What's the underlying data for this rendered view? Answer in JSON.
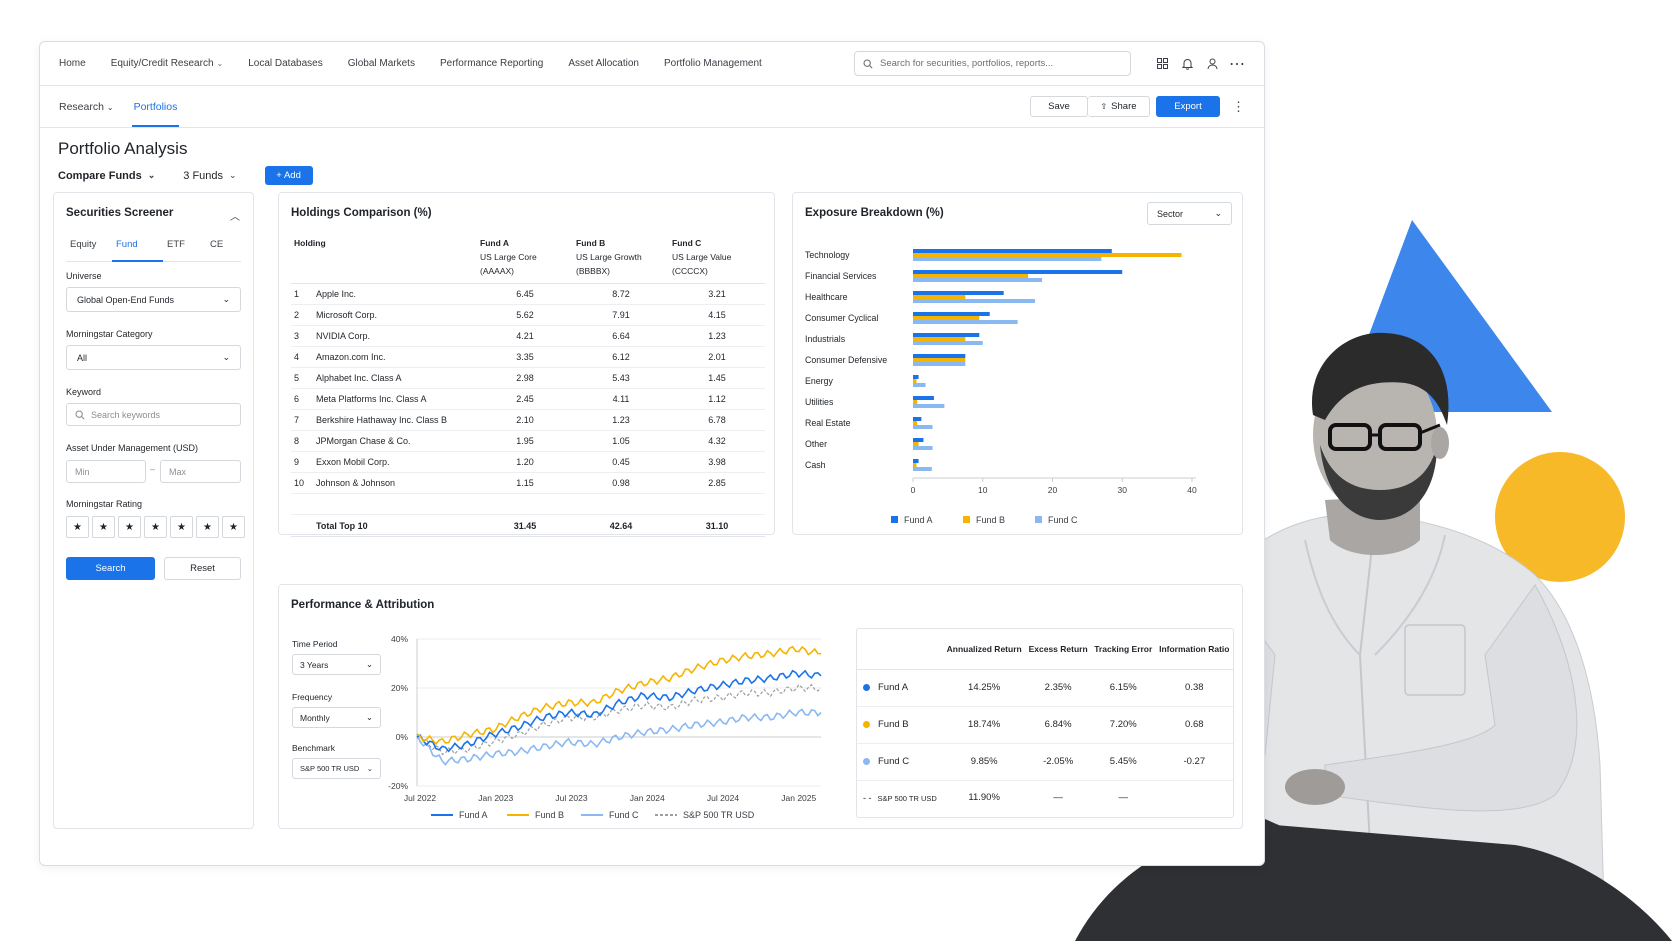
{
  "nav": {
    "items": [
      {
        "label": "Home"
      },
      {
        "label": "Equity/Credit Research",
        "has_dropdown": true
      },
      {
        "label": "Local Databases"
      },
      {
        "label": "Global Markets"
      },
      {
        "label": "Performance Reporting"
      },
      {
        "label": "Asset Allocation"
      },
      {
        "label": "Portfolio Management"
      }
    ],
    "search_placeholder": "Search for securities, portfolios, reports...",
    "icons": [
      "apps-grid-icon",
      "bell-icon",
      "user-icon",
      "more-horizontal-icon"
    ]
  },
  "subnav": {
    "breadcrumb_root": "Research",
    "active": "Portfolios",
    "save_label": "Save",
    "share_label": "Share",
    "export_label": "Export"
  },
  "page": {
    "title": "Portfolio Analysis",
    "compare_label": "Compare Funds",
    "funds_label": "3 Funds",
    "add_label": "+ Add"
  },
  "screener": {
    "title": "Securities Screener",
    "tabs": [
      "Equity",
      "Fund",
      "ETF",
      "CE"
    ],
    "active_tab": "Fund",
    "universe_label": "Universe",
    "universe_value": "Global Open-End Funds",
    "category_label": "Morningstar Category",
    "category_value": "All",
    "keyword_label": "Keyword",
    "keyword_placeholder": "Search keywords",
    "aum_label": "Asset Under Management (USD)",
    "aum_min_placeholder": "Min",
    "aum_sep": "–",
    "aum_max_placeholder": "Max",
    "rating_label": "Morningstar Rating",
    "rating_stars": [
      "★",
      "★",
      "★",
      "★",
      "★",
      "★",
      "★"
    ],
    "search_label": "Search",
    "reset_label": "Reset"
  },
  "holdings": {
    "title": "Holdings Comparison (%)",
    "holding_header": "Holding",
    "funds": [
      {
        "name": "Fund A",
        "desc": "US Large Core",
        "ticker": "(AAAAX)"
      },
      {
        "name": "Fund B",
        "desc": "US Large Growth",
        "ticker": "(BBBBX)"
      },
      {
        "name": "Fund C",
        "desc": "US Large Value",
        "ticker": "(CCCCX)"
      }
    ],
    "rows": [
      {
        "rank": "1",
        "name": "Apple Inc.",
        "a": "6.45",
        "b": "8.72",
        "c": "3.21"
      },
      {
        "rank": "2",
        "name": "Microsoft Corp.",
        "a": "5.62",
        "b": "7.91",
        "c": "4.15"
      },
      {
        "rank": "3",
        "name": "NVIDIA Corp.",
        "a": "4.21",
        "b": "6.64",
        "c": "1.23"
      },
      {
        "rank": "4",
        "name": "Amazon.com Inc.",
        "a": "3.35",
        "b": "6.12",
        "c": "2.01"
      },
      {
        "rank": "5",
        "name": "Alphabet Inc. Class A",
        "a": "2.98",
        "b": "5.43",
        "c": "1.45"
      },
      {
        "rank": "6",
        "name": "Meta Platforms Inc. Class A",
        "a": "2.45",
        "b": "4.11",
        "c": "1.12"
      },
      {
        "rank": "7",
        "name": "Berkshire Hathaway Inc. Class B",
        "a": "2.10",
        "b": "1.23",
        "c": "6.78"
      },
      {
        "rank": "8",
        "name": "JPMorgan Chase & Co.",
        "a": "1.95",
        "b": "1.05",
        "c": "4.32"
      },
      {
        "rank": "9",
        "name": "Exxon Mobil Corp.",
        "a": "1.20",
        "b": "0.45",
        "c": "3.98"
      },
      {
        "rank": "10",
        "name": "Johnson & Johnson",
        "a": "1.15",
        "b": "0.98",
        "c": "2.85"
      }
    ],
    "total": {
      "label": "Total Top 10",
      "a": "31.45",
      "b": "42.64",
      "c": "31.10"
    }
  },
  "exposure": {
    "title": "Exposure Breakdown (%)",
    "group_by": "Sector"
  },
  "performance": {
    "title": "Performance & Attribution",
    "time_period_label": "Time Period",
    "time_period_value": "3 Years",
    "frequency_label": "Frequency",
    "frequency_value": "Monthly",
    "benchmark_label": "Benchmark",
    "benchmark_value": "S&P 500 TR USD",
    "metric_headers": [
      "Annualized Return",
      "Excess Return",
      "Tracking Error",
      "Information Ratio"
    ],
    "metrics": [
      {
        "name": "Fund A",
        "color": "#1a73e8",
        "values": [
          "14.25%",
          "2.35%",
          "6.15%",
          "0.38"
        ]
      },
      {
        "name": "Fund B",
        "color": "#f5b400",
        "values": [
          "18.74%",
          "6.84%",
          "7.20%",
          "0.68"
        ]
      },
      {
        "name": "Fund C",
        "color": "#8ab8f0",
        "values": [
          "9.85%",
          "-2.05%",
          "5.45%",
          "-0.27"
        ]
      }
    ],
    "benchmark_row": {
      "marker": "- -",
      "name": "S&P 500 TR USD",
      "values": [
        "11.90%",
        "—",
        "—",
        ""
      ]
    }
  },
  "colors": {
    "fund_a": "#1a73e8",
    "fund_b": "#f5b400",
    "fund_c": "#8ab8f0",
    "benchmark": "#9a9ea3",
    "accent": "#1a73e8"
  },
  "chart_data": [
    {
      "type": "bar",
      "orientation": "horizontal",
      "categories": [
        "Technology",
        "Financial Services",
        "Healthcare",
        "Consumer Cyclical",
        "Industrials",
        "Consumer Defensive",
        "Energy",
        "Utilities",
        "Real Estate",
        "Other",
        "Cash"
      ],
      "series": [
        {
          "name": "Fund A",
          "color": "#1a73e8",
          "values": [
            28.5,
            30.0,
            13.0,
            11.0,
            9.5,
            7.5,
            0.8,
            3.0,
            1.2,
            1.5,
            0.8
          ]
        },
        {
          "name": "Fund B",
          "color": "#f5b400",
          "values": [
            38.5,
            16.5,
            7.5,
            9.5,
            7.5,
            7.5,
            0.5,
            0.6,
            0.6,
            0.8,
            0.5
          ]
        },
        {
          "name": "Fund C",
          "color": "#8ab8f0",
          "values": [
            27.0,
            18.5,
            17.5,
            15.0,
            10.0,
            7.5,
            1.8,
            4.5,
            2.8,
            2.8,
            2.7
          ]
        }
      ],
      "xlim": [
        0,
        40
      ],
      "xticks": [
        "0",
        "10",
        "20",
        "30",
        "40"
      ],
      "legend": "bottom"
    },
    {
      "type": "line",
      "x_ticks": [
        "Jul 2022",
        "Jan 2023",
        "Jul 2023",
        "Jan 2024",
        "Jul 2024",
        "Jan 2025"
      ],
      "y_ticks": [
        "40%",
        "20%",
        "0%",
        "-20%"
      ],
      "ylim": [
        -20,
        40
      ],
      "x_points": [
        "2022-07",
        "2022-09",
        "2022-11",
        "2023-01",
        "2023-03",
        "2023-05",
        "2023-07",
        "2023-09",
        "2023-11",
        "2024-01",
        "2024-03",
        "2024-05",
        "2024-07",
        "2024-09",
        "2024-11",
        "2025-01",
        "2025-03"
      ],
      "series": [
        {
          "name": "Fund A",
          "color": "#1a73e8",
          "values": [
            0,
            -5,
            -3,
            1,
            4,
            8,
            10,
            9,
            14,
            17,
            16,
            19,
            21,
            23,
            24,
            26,
            25
          ]
        },
        {
          "name": "Fund B",
          "color": "#f5b400",
          "values": [
            0,
            -2,
            1,
            3,
            8,
            12,
            14,
            14,
            19,
            22,
            24,
            28,
            31,
            33,
            34,
            36,
            34
          ]
        },
        {
          "name": "Fund C",
          "color": "#8ab8f0",
          "values": [
            0,
            -10,
            -9,
            -7,
            -6,
            -4,
            -2,
            -3,
            0,
            2,
            3,
            5,
            6,
            8,
            8,
            10,
            10
          ]
        },
        {
          "name": "S&P 500 TR USD",
          "color": "#9a9ea3",
          "dashed": true,
          "values": [
            0,
            -6,
            -5,
            -2,
            1,
            5,
            8,
            8,
            11,
            13,
            12,
            15,
            16,
            18,
            18,
            20,
            20
          ]
        }
      ],
      "legend": "bottom"
    }
  ]
}
